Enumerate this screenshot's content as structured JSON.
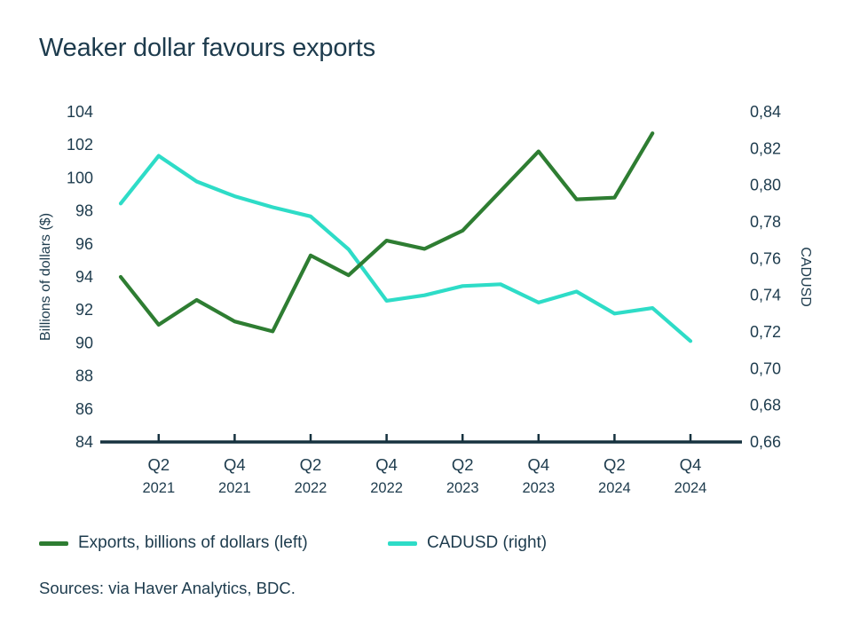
{
  "title": "Weaker dollar favours exports",
  "source": "Sources: via Haver Analytics, BDC.",
  "colors": {
    "text": "#1d3b4d",
    "axis": "#16323f",
    "exports_line": "#2e7d32",
    "cadusd_line": "#2edcc7",
    "background": "#ffffff"
  },
  "legend": {
    "items": [
      {
        "id": "exports",
        "label": "Exports, billions of dollars (left)",
        "color": "#2e7d32"
      },
      {
        "id": "cadusd",
        "label": "CADUSD (right)",
        "color": "#2edcc7"
      }
    ]
  },
  "chart_data": {
    "type": "line",
    "title": "Weaker dollar favours exports",
    "categories": [
      "Q1 2021",
      "Q2 2021",
      "Q3 2021",
      "Q4 2021",
      "Q1 2022",
      "Q2 2022",
      "Q3 2022",
      "Q4 2022",
      "Q1 2023",
      "Q2 2023",
      "Q3 2023",
      "Q4 2023",
      "Q1 2024",
      "Q2 2024",
      "Q3 2024",
      "Q4 2024"
    ],
    "x_tick_indices": [
      1,
      3,
      5,
      7,
      9,
      11,
      13,
      15
    ],
    "x_tick_labels": [
      [
        "Q2",
        "2021"
      ],
      [
        "Q4",
        "2021"
      ],
      [
        "Q2",
        "2022"
      ],
      [
        "Q4",
        "2022"
      ],
      [
        "Q2",
        "2023"
      ],
      [
        "Q4",
        "2023"
      ],
      [
        "Q2",
        "2024"
      ],
      [
        "Q4",
        "2024"
      ]
    ],
    "series": [
      {
        "id": "exports",
        "name": "Exports, billions of dollars (left)",
        "axis": "left",
        "color": "#2e7d32",
        "values": [
          94.0,
          91.1,
          92.6,
          91.3,
          90.7,
          95.3,
          94.1,
          96.2,
          95.7,
          96.8,
          99.2,
          101.6,
          98.7,
          98.8,
          102.7,
          null
        ]
      },
      {
        "id": "cadusd",
        "name": "CADUSD (right)",
        "axis": "right",
        "color": "#2edcc7",
        "values": [
          0.79,
          0.816,
          0.802,
          0.794,
          0.788,
          0.783,
          0.765,
          0.737,
          0.74,
          0.745,
          0.746,
          0.736,
          0.742,
          0.73,
          0.733,
          0.715
        ]
      }
    ],
    "left_axis": {
      "label": "Billions of dollars ($)",
      "min": 84,
      "max": 104,
      "step": 2
    },
    "right_axis": {
      "label": "CADUSD",
      "min": 0.66,
      "max": 0.84,
      "step": 0.02,
      "decimal_separator": ","
    },
    "grid": false,
    "legend_position": "bottom"
  }
}
